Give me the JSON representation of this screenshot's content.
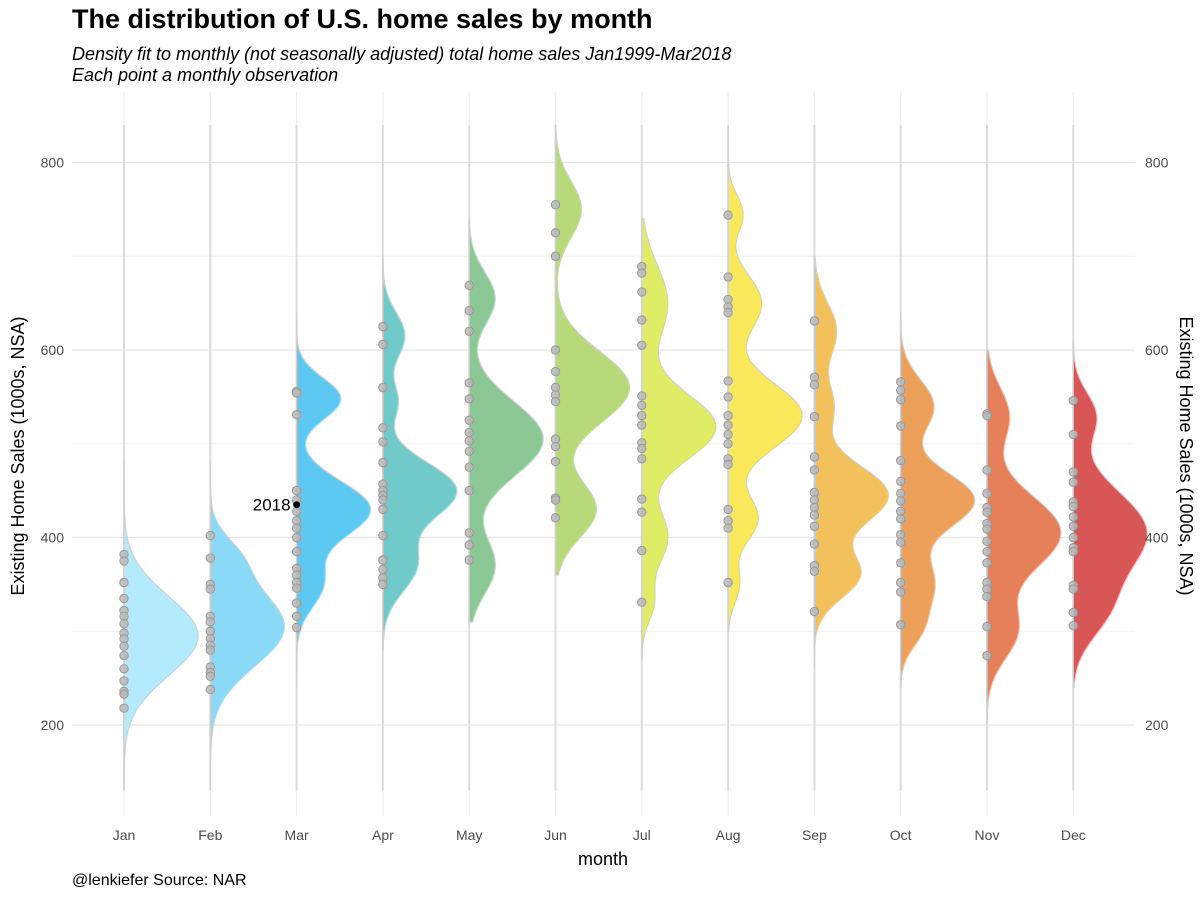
{
  "chart_data": {
    "type": "half-violin with points",
    "title": "The distribution of U.S. home sales by month",
    "subtitle": [
      "Density fit to monthly (not seasonally adjusted) total home sales Jan1999-Mar2018",
      "Each point a monthly observation"
    ],
    "caption": "@lenkiefer Source: NAR",
    "xlabel": "month",
    "ylabel": "Existing Home Sales (1000s, NSA)",
    "ylabel_right": "Existing Home Sales (1000s, NSA)",
    "ylim": [
      100,
      880
    ],
    "yticks": [
      200,
      400,
      600,
      800
    ],
    "grid": true,
    "legend": "none",
    "categories": [
      "Jan",
      "Feb",
      "Mar",
      "Apr",
      "May",
      "Jun",
      "Jul",
      "Aug",
      "Sep",
      "Oct",
      "Nov",
      "Dec"
    ],
    "series": [
      {
        "month": "Jan",
        "color": "#b3ebfc",
        "range": [
          130,
          480
        ],
        "peaks": [
          [
            295,
            1.0,
            42
          ]
        ],
        "points": [
          382,
          375,
          352,
          335,
          322,
          316,
          308,
          298,
          292,
          284,
          274,
          260,
          247,
          236,
          233,
          218
        ]
      },
      {
        "month": "Feb",
        "color": "#89d9f7",
        "range": [
          130,
          480
        ],
        "peaks": [
          [
            305,
            1.0,
            42
          ],
          [
            380,
            0.25,
            22
          ]
        ],
        "points": [
          402,
          378,
          350,
          345,
          316,
          310,
          300,
          292,
          285,
          280,
          262,
          256,
          252,
          238
        ]
      },
      {
        "month": "Mar",
        "color": "#5dc9f2",
        "range": [
          240,
          640
        ],
        "peaks": [
          [
            430,
            1.0,
            30
          ],
          [
            548,
            0.6,
            22
          ],
          [
            350,
            0.35,
            25
          ]
        ],
        "points": [
          556,
          554,
          531,
          450,
          440,
          428,
          418,
          410,
          400,
          385,
          367,
          360,
          352,
          346,
          330,
          316,
          304
        ],
        "annotation": {
          "label": "2018",
          "value": 435
        }
      },
      {
        "month": "Apr",
        "color": "#6fcac9",
        "range": [
          280,
          700
        ],
        "peaks": [
          [
            450,
            1.0,
            30
          ],
          [
            370,
            0.45,
            28
          ],
          [
            615,
            0.3,
            25
          ],
          [
            545,
            0.2,
            20
          ]
        ],
        "points": [
          625,
          606,
          560,
          517,
          502,
          480,
          457,
          450,
          445,
          440,
          430,
          402,
          376,
          366,
          357,
          350
        ]
      },
      {
        "month": "May",
        "color": "#8bc895",
        "range": [
          310,
          740
        ],
        "peaks": [
          [
            505,
            1.0,
            40
          ],
          [
            370,
            0.35,
            30
          ],
          [
            655,
            0.35,
            28
          ]
        ],
        "points": [
          669,
          642,
          620,
          565,
          548,
          525,
          512,
          503,
          492,
          475,
          450,
          405,
          392,
          376
        ]
      },
      {
        "month": "Jun",
        "color": "#b7d97a",
        "range": [
          360,
          840
        ],
        "peaks": [
          [
            560,
            1.0,
            38
          ],
          [
            430,
            0.55,
            30
          ],
          [
            750,
            0.35,
            30
          ]
        ],
        "points": [
          755,
          725,
          700,
          600,
          577,
          560,
          552,
          545,
          505,
          497,
          481,
          442,
          440,
          421
        ]
      },
      {
        "month": "Jul",
        "color": "#e1ec66",
        "range": [
          270,
          740
        ],
        "peaks": [
          [
            518,
            1.0,
            35
          ],
          [
            650,
            0.35,
            40
          ],
          [
            400,
            0.35,
            30
          ],
          [
            330,
            0.15,
            20
          ]
        ],
        "points": [
          689,
          682,
          662,
          632,
          605,
          551,
          541,
          530,
          520,
          501,
          495,
          484,
          441,
          427,
          386,
          331
        ]
      },
      {
        "month": "Aug",
        "color": "#f9e95a",
        "range": [
          300,
          840
        ],
        "peaks": [
          [
            530,
            1.0,
            35
          ],
          [
            420,
            0.4,
            25
          ],
          [
            650,
            0.45,
            30
          ],
          [
            745,
            0.2,
            20
          ],
          [
            350,
            0.15,
            20
          ]
        ],
        "points": [
          744,
          678,
          654,
          646,
          640,
          567,
          550,
          530,
          520,
          510,
          500,
          484,
          478,
          430,
          418,
          410,
          352
        ]
      },
      {
        "month": "Sep",
        "color": "#f3c15b",
        "range": [
          260,
          700
        ],
        "peaks": [
          [
            445,
            1.0,
            32
          ],
          [
            360,
            0.6,
            25
          ],
          [
            620,
            0.3,
            30
          ],
          [
            540,
            0.25,
            25
          ]
        ],
        "points": [
          631,
          571,
          563,
          529,
          486,
          472,
          448,
          440,
          432,
          424,
          412,
          393,
          370,
          364,
          321
        ]
      },
      {
        "month": "Oct",
        "color": "#eca05a",
        "range": [
          240,
          640
        ],
        "peaks": [
          [
            440,
            1.0,
            30
          ],
          [
            540,
            0.45,
            28
          ],
          [
            350,
            0.45,
            30
          ],
          [
            300,
            0.2,
            20
          ]
        ],
        "points": [
          566,
          557,
          547,
          519,
          482,
          460,
          447,
          439,
          428,
          420,
          403,
          395,
          373,
          352,
          342,
          307
        ]
      },
      {
        "month": "Nov",
        "color": "#e6805b",
        "range": [
          200,
          600
        ],
        "peaks": [
          [
            405,
            1.0,
            40
          ],
          [
            300,
            0.4,
            30
          ],
          [
            530,
            0.3,
            30
          ]
        ],
        "points": [
          532,
          530,
          472,
          447,
          432,
          427,
          415,
          409,
          396,
          385,
          373,
          352,
          345,
          337,
          305,
          274
        ]
      },
      {
        "month": "Dec",
        "color": "#d85656",
        "range": [
          240,
          610
        ],
        "peaks": [
          [
            405,
            1.0,
            45
          ],
          [
            530,
            0.3,
            25
          ],
          [
            320,
            0.35,
            30
          ]
        ],
        "points": [
          546,
          510,
          470,
          459,
          438,
          433,
          422,
          412,
          400,
          389,
          385,
          349,
          345,
          320,
          306
        ]
      }
    ]
  }
}
